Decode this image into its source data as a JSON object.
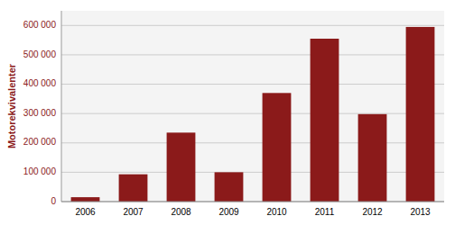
{
  "chart_data": {
    "type": "bar",
    "categories": [
      "2006",
      "2007",
      "2008",
      "2009",
      "2010",
      "2011",
      "2012",
      "2013"
    ],
    "values": [
      15000,
      93000,
      235000,
      100000,
      370000,
      555000,
      298000,
      595000
    ],
    "color": "#8B1A1A",
    "ylabel": "Motorekvivalenter",
    "ylim": [
      0,
      650000
    ],
    "yticks": [
      0,
      {
        "value": 100000,
        "label": "100 000"
      },
      {
        "value": 200000,
        "label": "200 000"
      },
      {
        "value": 300000,
        "label": "300 000"
      },
      {
        "value": 400000,
        "label": "400 000"
      },
      {
        "value": 500000,
        "label": "500 000"
      },
      {
        "value": 600000,
        "label": "600 000"
      }
    ],
    "grid": true
  }
}
